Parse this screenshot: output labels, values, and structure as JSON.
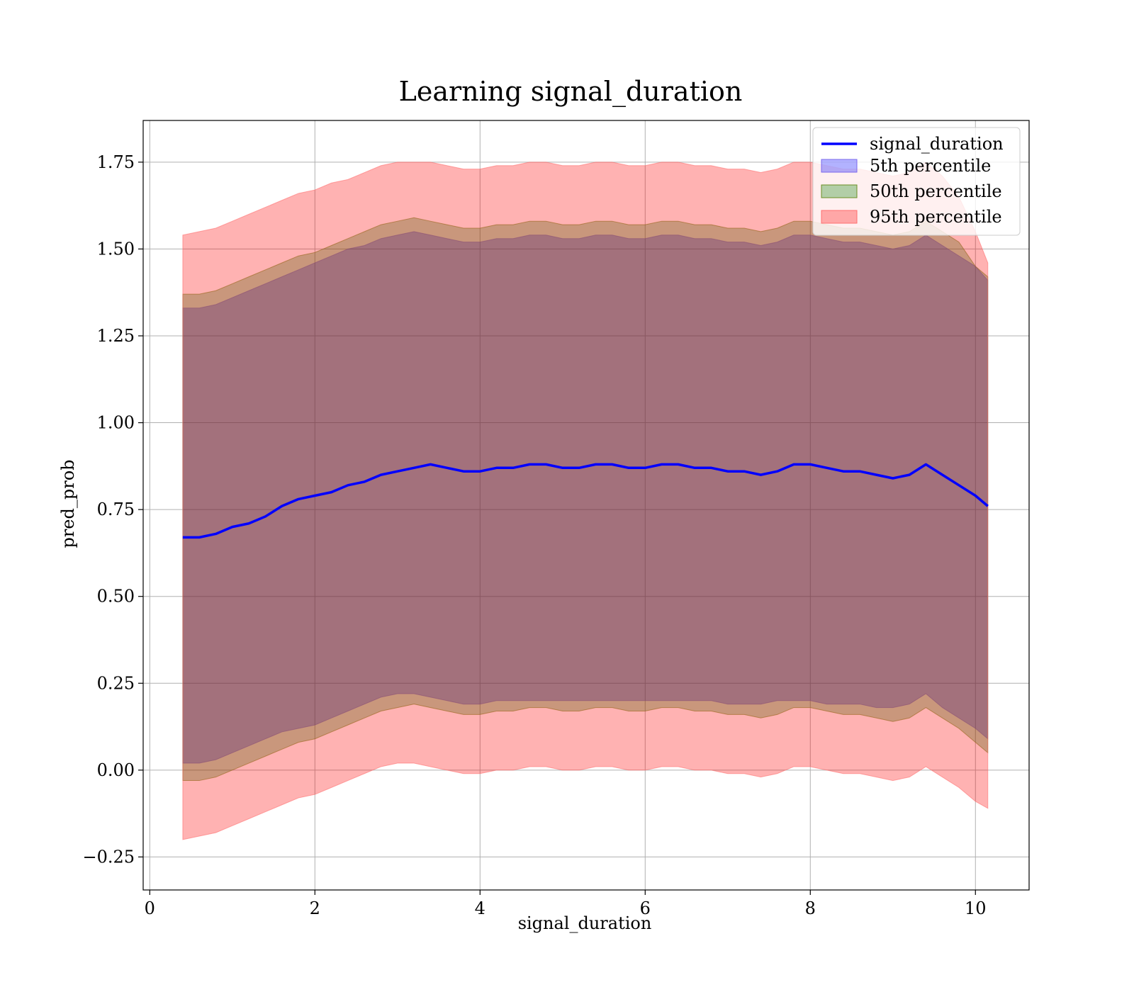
{
  "chart_data": {
    "type": "area",
    "title": "Learning signal_duration",
    "xlabel": "signal_duration",
    "ylabel": "pred_prob",
    "xlim": [
      -0.08,
      10.65
    ],
    "ylim": [
      -0.345,
      1.87
    ],
    "xticks": [
      0,
      2,
      4,
      6,
      8,
      10
    ],
    "xtick_labels": [
      "0",
      "2",
      "4",
      "6",
      "8",
      "10"
    ],
    "yticks": [
      -0.25,
      0,
      0.25,
      0.5,
      0.75,
      1.0,
      1.25,
      1.5,
      1.75
    ],
    "ytick_labels": [
      "−0.25",
      "0.00",
      "0.25",
      "0.50",
      "0.75",
      "1.00",
      "1.25",
      "1.50",
      "1.75"
    ],
    "grid": true,
    "legend_position": "top-right",
    "x": [
      0.4,
      0.6,
      0.8,
      1.0,
      1.2,
      1.4,
      1.6,
      1.8,
      2.0,
      2.2,
      2.4,
      2.6,
      2.8,
      3.0,
      3.2,
      3.4,
      3.6,
      3.8,
      4.0,
      4.2,
      4.4,
      4.6,
      4.8,
      5.0,
      5.2,
      5.4,
      5.6,
      5.8,
      6.0,
      6.2,
      6.4,
      6.6,
      6.8,
      7.0,
      7.2,
      7.4,
      7.6,
      7.8,
      8.0,
      8.2,
      8.4,
      8.6,
      8.8,
      9.0,
      9.2,
      9.4,
      9.6,
      9.8,
      10.0,
      10.15
    ],
    "line": {
      "name": "signal_duration",
      "color": "#0000ff",
      "values": [
        0.67,
        0.67,
        0.68,
        0.7,
        0.71,
        0.73,
        0.76,
        0.78,
        0.79,
        0.8,
        0.82,
        0.83,
        0.85,
        0.86,
        0.87,
        0.88,
        0.87,
        0.86,
        0.86,
        0.87,
        0.87,
        0.88,
        0.88,
        0.87,
        0.87,
        0.88,
        0.88,
        0.87,
        0.87,
        0.88,
        0.88,
        0.87,
        0.87,
        0.86,
        0.86,
        0.85,
        0.86,
        0.88,
        0.88,
        0.87,
        0.86,
        0.86,
        0.85,
        0.84,
        0.85,
        0.88,
        0.85,
        0.82,
        0.79,
        0.76
      ]
    },
    "bands": [
      {
        "name": "5th percentile",
        "color": "#7b68ee",
        "fill": "rgba(0,0,255,0.3)",
        "lower": [
          0.02,
          0.02,
          0.03,
          0.05,
          0.07,
          0.09,
          0.11,
          0.12,
          0.13,
          0.15,
          0.17,
          0.19,
          0.21,
          0.22,
          0.22,
          0.21,
          0.2,
          0.19,
          0.19,
          0.2,
          0.2,
          0.2,
          0.2,
          0.2,
          0.2,
          0.2,
          0.2,
          0.2,
          0.2,
          0.2,
          0.2,
          0.2,
          0.2,
          0.19,
          0.19,
          0.19,
          0.2,
          0.2,
          0.2,
          0.19,
          0.19,
          0.19,
          0.18,
          0.18,
          0.19,
          0.22,
          0.18,
          0.15,
          0.12,
          0.09
        ],
        "upper": [
          1.33,
          1.33,
          1.34,
          1.36,
          1.38,
          1.4,
          1.42,
          1.44,
          1.46,
          1.48,
          1.5,
          1.51,
          1.53,
          1.54,
          1.55,
          1.54,
          1.53,
          1.52,
          1.52,
          1.53,
          1.53,
          1.54,
          1.54,
          1.53,
          1.53,
          1.54,
          1.54,
          1.53,
          1.53,
          1.54,
          1.54,
          1.53,
          1.53,
          1.52,
          1.52,
          1.51,
          1.52,
          1.54,
          1.54,
          1.53,
          1.52,
          1.52,
          1.51,
          1.5,
          1.51,
          1.54,
          1.51,
          1.48,
          1.45,
          1.41
        ]
      },
      {
        "name": "50th percentile",
        "color": "#6b8e23",
        "fill": "rgba(0,128,0,0.3)",
        "lower": [
          -0.03,
          -0.03,
          -0.02,
          0.0,
          0.02,
          0.04,
          0.06,
          0.08,
          0.09,
          0.11,
          0.13,
          0.15,
          0.17,
          0.18,
          0.19,
          0.18,
          0.17,
          0.16,
          0.16,
          0.17,
          0.17,
          0.18,
          0.18,
          0.17,
          0.17,
          0.18,
          0.18,
          0.17,
          0.17,
          0.18,
          0.18,
          0.17,
          0.17,
          0.16,
          0.16,
          0.15,
          0.16,
          0.18,
          0.18,
          0.17,
          0.16,
          0.16,
          0.15,
          0.14,
          0.15,
          0.18,
          0.15,
          0.12,
          0.08,
          0.05
        ],
        "upper": [
          1.37,
          1.37,
          1.38,
          1.4,
          1.42,
          1.44,
          1.46,
          1.48,
          1.49,
          1.51,
          1.53,
          1.55,
          1.57,
          1.58,
          1.59,
          1.58,
          1.57,
          1.56,
          1.56,
          1.57,
          1.57,
          1.58,
          1.58,
          1.57,
          1.57,
          1.58,
          1.58,
          1.57,
          1.57,
          1.58,
          1.58,
          1.57,
          1.57,
          1.56,
          1.56,
          1.55,
          1.56,
          1.58,
          1.58,
          1.57,
          1.56,
          1.56,
          1.55,
          1.54,
          1.55,
          1.58,
          1.55,
          1.52,
          1.45,
          1.42
        ]
      },
      {
        "name": "95th percentile",
        "color": "#ff6f6f",
        "fill": "rgba(255,0,0,0.3)",
        "lower": [
          -0.2,
          -0.19,
          -0.18,
          -0.16,
          -0.14,
          -0.12,
          -0.1,
          -0.08,
          -0.07,
          -0.05,
          -0.03,
          -0.01,
          0.01,
          0.02,
          0.02,
          0.01,
          0.0,
          -0.01,
          -0.01,
          0.0,
          0.0,
          0.01,
          0.01,
          0.0,
          0.0,
          0.01,
          0.01,
          0.0,
          0.0,
          0.01,
          0.01,
          0.0,
          0.0,
          -0.01,
          -0.01,
          -0.02,
          -0.01,
          0.01,
          0.01,
          0.0,
          -0.01,
          -0.01,
          -0.02,
          -0.03,
          -0.02,
          0.01,
          -0.02,
          -0.05,
          -0.09,
          -0.11
        ],
        "upper": [
          1.54,
          1.55,
          1.56,
          1.58,
          1.6,
          1.62,
          1.64,
          1.66,
          1.67,
          1.69,
          1.7,
          1.72,
          1.74,
          1.75,
          1.75,
          1.75,
          1.74,
          1.73,
          1.73,
          1.74,
          1.74,
          1.75,
          1.75,
          1.74,
          1.74,
          1.75,
          1.75,
          1.74,
          1.74,
          1.75,
          1.75,
          1.74,
          1.74,
          1.73,
          1.73,
          1.72,
          1.73,
          1.75,
          1.75,
          1.74,
          1.73,
          1.73,
          1.72,
          1.71,
          1.72,
          1.75,
          1.71,
          1.65,
          1.55,
          1.46
        ]
      }
    ]
  }
}
